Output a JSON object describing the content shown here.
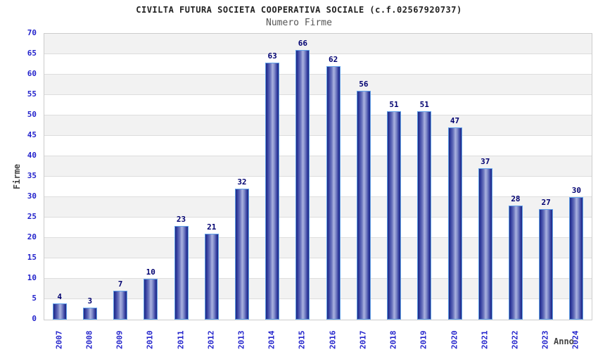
{
  "chart_data": {
    "type": "bar",
    "title": "CIVILTA FUTURA SOCIETA COOPERATIVA SOCIALE (c.f.02567920737)",
    "subtitle": "Numero Firme",
    "xlabel": "Anno",
    "ylabel": "Firme",
    "categories": [
      "2007",
      "2008",
      "2009",
      "2010",
      "2011",
      "2012",
      "2013",
      "2014",
      "2015",
      "2016",
      "2017",
      "2018",
      "2019",
      "2020",
      "2021",
      "2022",
      "2023",
      "2024"
    ],
    "values": [
      4,
      3,
      7,
      10,
      23,
      21,
      32,
      63,
      66,
      62,
      56,
      51,
      51,
      47,
      37,
      28,
      27,
      30
    ],
    "ylim": [
      0,
      70
    ],
    "ytick_step": 5,
    "grid": "horizontal gridlines with alternating gray/white bands",
    "legend": "none",
    "bar_value_labels_shown": true
  },
  "colors": {
    "title": "#222222",
    "subtitle": "#555555",
    "axis_title": "#444444",
    "tick_label_blue": "#2424cc",
    "value_label_navy": "#000070",
    "band_gray": "#f2f2f2",
    "grid_line": "#dddddd",
    "plot_border": "#cccccc",
    "bar_border": "#61a0e8",
    "bar_gradient": [
      "#202a7e",
      "#2d389c",
      "#6a74bd",
      "#aab2e0",
      "#7e88c8",
      "#2d389c",
      "#202a7e"
    ],
    "bar_gradient_stops_pct": [
      0,
      10,
      35,
      52,
      68,
      90,
      100
    ]
  }
}
